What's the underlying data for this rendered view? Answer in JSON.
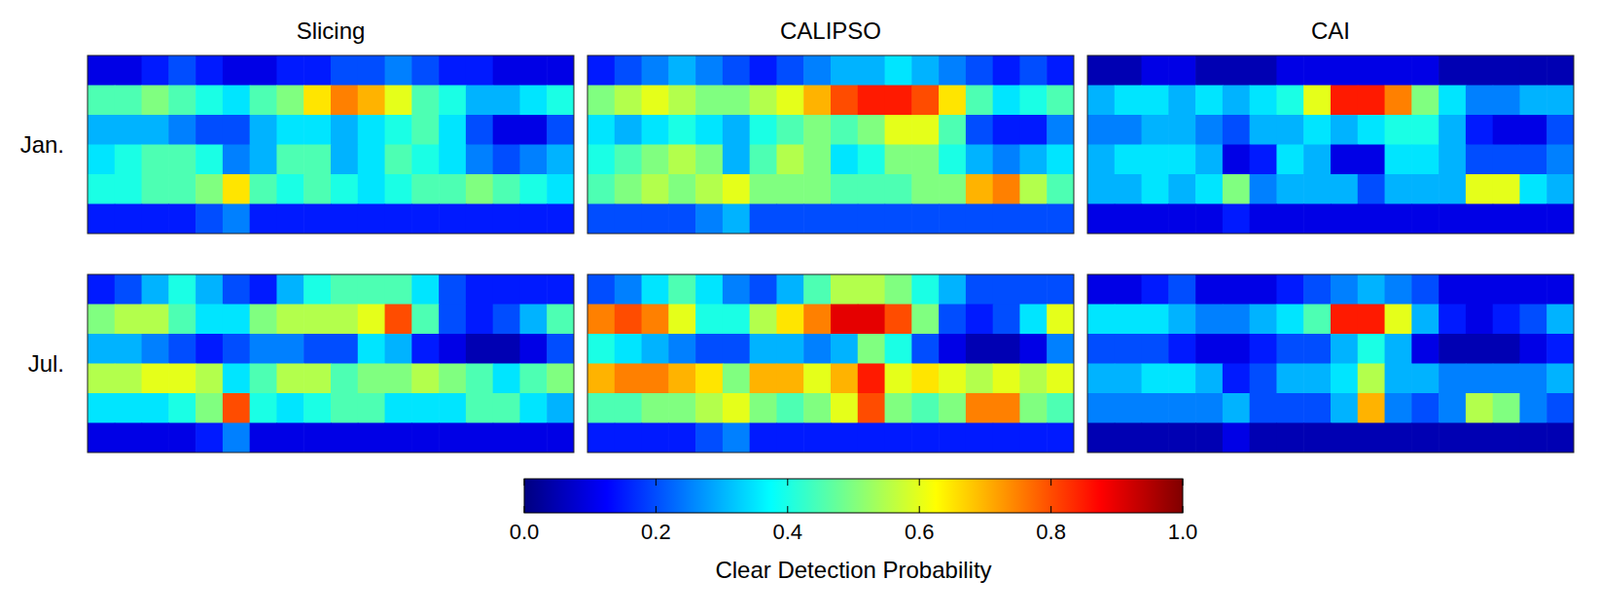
{
  "chart_data": {
    "type": "heatmap",
    "column_titles": [
      "Slicing",
      "CALIPSO",
      "CAI"
    ],
    "row_titles": [
      "Jan.",
      "Jul."
    ],
    "panels": [
      [
        {
          "cells": [
            [
              0.1,
              0.1,
              0.15,
              0.2,
              0.15,
              0.1,
              0.1,
              0.15,
              0.15,
              0.2,
              0.2,
              0.25,
              0.2,
              0.15,
              0.15,
              0.1,
              0.1,
              0.1
            ],
            [
              0.45,
              0.45,
              0.5,
              0.45,
              0.4,
              0.35,
              0.45,
              0.5,
              0.65,
              0.75,
              0.7,
              0.6,
              0.45,
              0.4,
              0.3,
              0.3,
              0.35,
              0.4
            ],
            [
              0.3,
              0.3,
              0.3,
              0.25,
              0.2,
              0.2,
              0.3,
              0.35,
              0.35,
              0.3,
              0.35,
              0.4,
              0.45,
              0.35,
              0.2,
              0.1,
              0.1,
              0.2
            ],
            [
              0.35,
              0.4,
              0.45,
              0.45,
              0.4,
              0.25,
              0.3,
              0.45,
              0.45,
              0.3,
              0.35,
              0.45,
              0.4,
              0.35,
              0.25,
              0.2,
              0.25,
              0.3
            ],
            [
              0.4,
              0.4,
              0.45,
              0.45,
              0.5,
              0.65,
              0.45,
              0.4,
              0.45,
              0.4,
              0.35,
              0.4,
              0.45,
              0.45,
              0.5,
              0.45,
              0.4,
              0.35
            ],
            [
              0.15,
              0.15,
              0.15,
              0.15,
              0.2,
              0.25,
              0.15,
              0.15,
              0.15,
              0.15,
              0.15,
              0.15,
              0.15,
              0.15,
              0.15,
              0.15,
              0.15,
              0.15
            ]
          ]
        },
        {
          "cells": [
            [
              0.15,
              0.2,
              0.25,
              0.3,
              0.25,
              0.2,
              0.15,
              0.2,
              0.25,
              0.3,
              0.3,
              0.35,
              0.3,
              0.25,
              0.2,
              0.15,
              0.2,
              0.15
            ],
            [
              0.5,
              0.55,
              0.6,
              0.55,
              0.5,
              0.5,
              0.55,
              0.6,
              0.7,
              0.8,
              0.85,
              0.85,
              0.8,
              0.65,
              0.45,
              0.35,
              0.4,
              0.45
            ],
            [
              0.35,
              0.3,
              0.35,
              0.4,
              0.35,
              0.3,
              0.4,
              0.45,
              0.5,
              0.45,
              0.5,
              0.6,
              0.6,
              0.45,
              0.2,
              0.15,
              0.15,
              0.25
            ],
            [
              0.4,
              0.45,
              0.5,
              0.55,
              0.5,
              0.3,
              0.45,
              0.55,
              0.5,
              0.35,
              0.4,
              0.5,
              0.5,
              0.4,
              0.3,
              0.25,
              0.3,
              0.35
            ],
            [
              0.45,
              0.5,
              0.55,
              0.5,
              0.55,
              0.6,
              0.5,
              0.5,
              0.5,
              0.45,
              0.45,
              0.45,
              0.5,
              0.5,
              0.7,
              0.75,
              0.55,
              0.45
            ],
            [
              0.2,
              0.2,
              0.2,
              0.2,
              0.25,
              0.3,
              0.2,
              0.2,
              0.2,
              0.2,
              0.2,
              0.2,
              0.2,
              0.2,
              0.2,
              0.2,
              0.2,
              0.2
            ]
          ]
        },
        {
          "cells": [
            [
              0.05,
              0.05,
              0.1,
              0.1,
              0.05,
              0.05,
              0.05,
              0.1,
              0.1,
              0.1,
              0.1,
              0.1,
              0.1,
              0.05,
              0.05,
              0.05,
              0.05,
              0.05
            ],
            [
              0.3,
              0.35,
              0.35,
              0.3,
              0.35,
              0.3,
              0.35,
              0.4,
              0.6,
              0.85,
              0.85,
              0.75,
              0.5,
              0.35,
              0.25,
              0.25,
              0.3,
              0.3
            ],
            [
              0.25,
              0.25,
              0.3,
              0.3,
              0.25,
              0.2,
              0.3,
              0.3,
              0.35,
              0.3,
              0.35,
              0.4,
              0.4,
              0.3,
              0.15,
              0.1,
              0.1,
              0.2
            ],
            [
              0.3,
              0.35,
              0.35,
              0.35,
              0.3,
              0.1,
              0.15,
              0.35,
              0.3,
              0.1,
              0.1,
              0.35,
              0.35,
              0.3,
              0.2,
              0.2,
              0.2,
              0.25
            ],
            [
              0.3,
              0.3,
              0.35,
              0.3,
              0.35,
              0.5,
              0.25,
              0.3,
              0.3,
              0.3,
              0.2,
              0.3,
              0.3,
              0.3,
              0.6,
              0.6,
              0.35,
              0.3
            ],
            [
              0.1,
              0.1,
              0.1,
              0.1,
              0.1,
              0.15,
              0.1,
              0.1,
              0.1,
              0.1,
              0.1,
              0.1,
              0.1,
              0.1,
              0.1,
              0.1,
              0.1,
              0.1
            ]
          ]
        }
      ],
      [
        {
          "cells": [
            [
              0.15,
              0.2,
              0.3,
              0.4,
              0.3,
              0.2,
              0.15,
              0.3,
              0.4,
              0.45,
              0.45,
              0.45,
              0.35,
              0.2,
              0.15,
              0.15,
              0.15,
              0.15
            ],
            [
              0.5,
              0.55,
              0.55,
              0.45,
              0.35,
              0.35,
              0.5,
              0.55,
              0.55,
              0.55,
              0.6,
              0.8,
              0.45,
              0.2,
              0.15,
              0.2,
              0.3,
              0.45
            ],
            [
              0.3,
              0.3,
              0.25,
              0.2,
              0.15,
              0.2,
              0.25,
              0.25,
              0.2,
              0.2,
              0.35,
              0.3,
              0.15,
              0.1,
              0.05,
              0.05,
              0.1,
              0.2
            ],
            [
              0.55,
              0.55,
              0.6,
              0.6,
              0.55,
              0.35,
              0.45,
              0.55,
              0.55,
              0.45,
              0.5,
              0.5,
              0.55,
              0.5,
              0.45,
              0.35,
              0.45,
              0.5
            ],
            [
              0.35,
              0.35,
              0.35,
              0.4,
              0.5,
              0.8,
              0.4,
              0.35,
              0.4,
              0.45,
              0.45,
              0.35,
              0.35,
              0.35,
              0.45,
              0.45,
              0.35,
              0.3
            ],
            [
              0.1,
              0.1,
              0.1,
              0.1,
              0.15,
              0.25,
              0.1,
              0.1,
              0.1,
              0.1,
              0.1,
              0.1,
              0.1,
              0.1,
              0.1,
              0.1,
              0.1,
              0.1
            ]
          ]
        },
        {
          "cells": [
            [
              0.2,
              0.25,
              0.35,
              0.45,
              0.35,
              0.25,
              0.2,
              0.3,
              0.45,
              0.55,
              0.55,
              0.5,
              0.4,
              0.3,
              0.2,
              0.2,
              0.2,
              0.2
            ],
            [
              0.75,
              0.8,
              0.75,
              0.6,
              0.4,
              0.4,
              0.55,
              0.65,
              0.75,
              0.9,
              0.9,
              0.8,
              0.5,
              0.2,
              0.15,
              0.2,
              0.35,
              0.6
            ],
            [
              0.4,
              0.35,
              0.3,
              0.25,
              0.2,
              0.2,
              0.3,
              0.3,
              0.25,
              0.3,
              0.5,
              0.4,
              0.2,
              0.1,
              0.05,
              0.05,
              0.1,
              0.25
            ],
            [
              0.7,
              0.75,
              0.75,
              0.7,
              0.65,
              0.5,
              0.7,
              0.7,
              0.6,
              0.7,
              0.85,
              0.6,
              0.65,
              0.6,
              0.55,
              0.6,
              0.55,
              0.6
            ],
            [
              0.45,
              0.45,
              0.5,
              0.5,
              0.55,
              0.6,
              0.5,
              0.45,
              0.5,
              0.6,
              0.8,
              0.5,
              0.45,
              0.5,
              0.75,
              0.75,
              0.5,
              0.45
            ],
            [
              0.15,
              0.15,
              0.15,
              0.15,
              0.2,
              0.25,
              0.15,
              0.15,
              0.15,
              0.15,
              0.15,
              0.15,
              0.15,
              0.15,
              0.15,
              0.15,
              0.15,
              0.15
            ]
          ]
        },
        {
          "cells": [
            [
              0.1,
              0.1,
              0.15,
              0.2,
              0.1,
              0.1,
              0.1,
              0.15,
              0.2,
              0.25,
              0.3,
              0.25,
              0.2,
              0.1,
              0.1,
              0.1,
              0.1,
              0.1
            ],
            [
              0.35,
              0.35,
              0.35,
              0.3,
              0.25,
              0.25,
              0.3,
              0.35,
              0.45,
              0.85,
              0.85,
              0.6,
              0.3,
              0.15,
              0.1,
              0.15,
              0.2,
              0.3
            ],
            [
              0.2,
              0.2,
              0.2,
              0.15,
              0.1,
              0.1,
              0.15,
              0.2,
              0.2,
              0.3,
              0.4,
              0.3,
              0.1,
              0.05,
              0.05,
              0.05,
              0.1,
              0.15
            ],
            [
              0.3,
              0.3,
              0.35,
              0.35,
              0.3,
              0.15,
              0.2,
              0.3,
              0.3,
              0.35,
              0.55,
              0.3,
              0.3,
              0.25,
              0.25,
              0.25,
              0.25,
              0.3
            ],
            [
              0.25,
              0.25,
              0.25,
              0.25,
              0.25,
              0.3,
              0.2,
              0.2,
              0.2,
              0.3,
              0.7,
              0.25,
              0.2,
              0.25,
              0.55,
              0.5,
              0.25,
              0.2
            ],
            [
              0.05,
              0.05,
              0.05,
              0.05,
              0.05,
              0.1,
              0.05,
              0.05,
              0.05,
              0.05,
              0.05,
              0.05,
              0.05,
              0.05,
              0.05,
              0.05,
              0.05,
              0.05
            ]
          ]
        }
      ]
    ],
    "colorbar": {
      "label": "Clear Detection Probability",
      "range": [
        0,
        1
      ],
      "ticks": [
        {
          "value": 0,
          "label": "0.0"
        },
        0.2,
        0.4,
        0.6,
        0.8,
        {
          "value": 1,
          "label": "1.0"
        }
      ]
    }
  }
}
